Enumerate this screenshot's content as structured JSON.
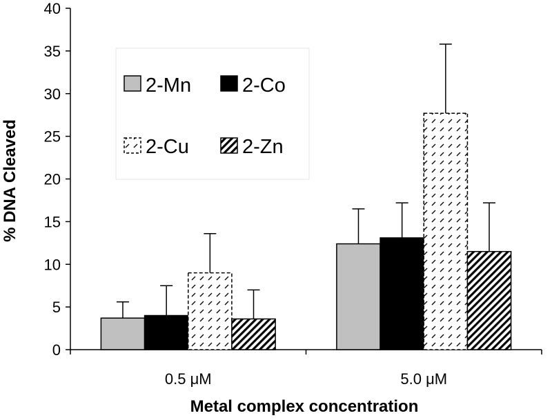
{
  "chart_data": {
    "type": "bar",
    "title": "",
    "xlabel": "Metal complex concentration",
    "ylabel": "% DNA Cleaved",
    "ylim": [
      0,
      40
    ],
    "yticks": [
      0,
      5,
      10,
      15,
      20,
      25,
      30,
      35,
      40
    ],
    "categories": [
      "0.5 μM",
      "5.0 μM"
    ],
    "series": [
      {
        "name": "2-Mn",
        "values": [
          3.7,
          12.4
        ],
        "error": [
          1.9,
          4.1
        ],
        "fill": "solid",
        "color": "#c0c0c0"
      },
      {
        "name": "2-Co",
        "values": [
          4.0,
          13.1
        ],
        "error": [
          3.5,
          4.1
        ],
        "fill": "solid",
        "color": "#000000"
      },
      {
        "name": "2-Cu",
        "values": [
          9.0,
          27.7
        ],
        "error": [
          4.6,
          8.1
        ],
        "fill": "dashed-hatch",
        "color": "#ffffff"
      },
      {
        "name": "2-Zn",
        "values": [
          3.6,
          11.5
        ],
        "error": [
          3.4,
          5.7
        ],
        "fill": "diagonal-hatch",
        "color": "#ffffff"
      }
    ],
    "legend": "upper-left inside plot",
    "grid": false
  }
}
